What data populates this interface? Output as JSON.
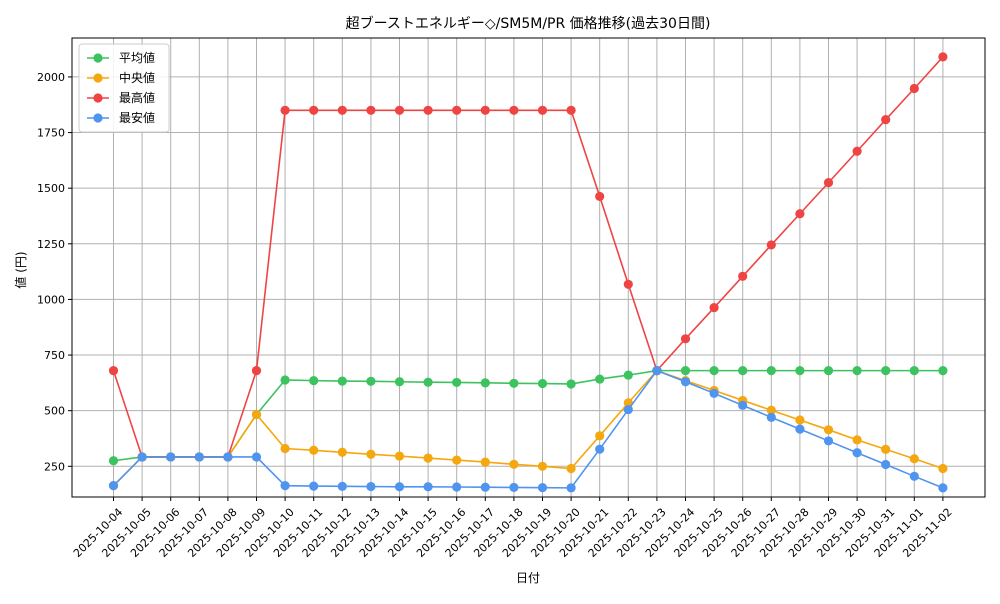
{
  "chart_data": {
    "type": "line",
    "title": "超ブーストエネルギー◇/SM5M/PR 価格推移(過去30日間)",
    "xlabel": "日付",
    "ylabel": "値 (円)",
    "x": [
      "2025-10-04",
      "2025-10-05",
      "2025-10-06",
      "2025-10-07",
      "2025-10-08",
      "2025-10-09",
      "2025-10-10",
      "2025-10-11",
      "2025-10-12",
      "2025-10-13",
      "2025-10-14",
      "2025-10-15",
      "2025-10-16",
      "2025-10-17",
      "2025-10-18",
      "2025-10-19",
      "2025-10-20",
      "2025-10-21",
      "2025-10-22",
      "2025-10-23",
      "2025-10-24",
      "2025-10-25",
      "2025-10-26",
      "2025-10-27",
      "2025-10-28",
      "2025-10-29",
      "2025-10-30",
      "2025-10-31",
      "2025-11-01",
      "2025-11-02"
    ],
    "yticks": [
      250,
      500,
      750,
      1000,
      1250,
      1500,
      1750,
      2000
    ],
    "ylim": [
      112,
      2175
    ],
    "grid": true,
    "legend_position": "top-left",
    "series": [
      {
        "name": "平均値",
        "color": "#3cc35f",
        "values": [
          275,
          292,
          292,
          292,
          292,
          483,
          638,
          635,
          633,
          632,
          630,
          628,
          627,
          625,
          623,
          622,
          620,
          642,
          660,
          680,
          680,
          680,
          680,
          680,
          680,
          680,
          680,
          680,
          680,
          680
        ]
      },
      {
        "name": "中央値",
        "color": "#f5a70f",
        "values": [
          163,
          292,
          292,
          292,
          292,
          483,
          330,
          322,
          313,
          304,
          296,
          287,
          278,
          269,
          259,
          250,
          240,
          387,
          535,
          680,
          635,
          591,
          546,
          502,
          458,
          414,
          369,
          326,
          284,
          240
        ]
      },
      {
        "name": "最高値",
        "color": "#ef4444",
        "values": [
          680,
          292,
          292,
          292,
          292,
          680,
          1850,
          1850,
          1850,
          1850,
          1850,
          1850,
          1850,
          1850,
          1850,
          1850,
          1850,
          1463,
          1068,
          680,
          823,
          963,
          1104,
          1245,
          1385,
          1525,
          1666,
          1808,
          1948,
          2090
        ]
      },
      {
        "name": "最安値",
        "color": "#4f94ef",
        "values": [
          163,
          292,
          292,
          292,
          292,
          292,
          163,
          161,
          160,
          159,
          158,
          158,
          157,
          156,
          155,
          154,
          153,
          327,
          505,
          680,
          630,
          578,
          524,
          470,
          417,
          364,
          311,
          258,
          205,
          153
        ]
      }
    ]
  }
}
